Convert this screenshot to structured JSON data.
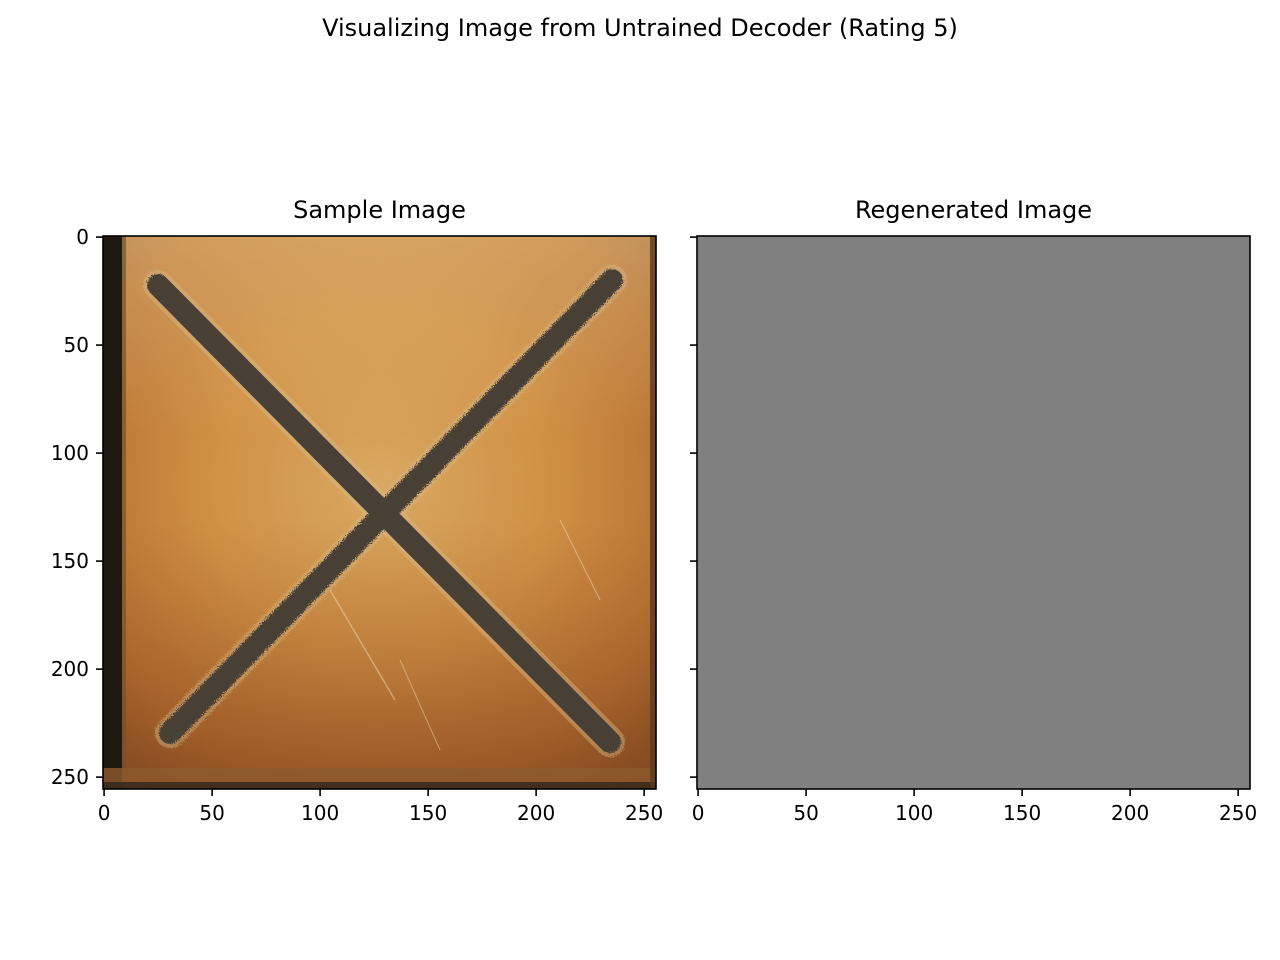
{
  "suptitle": "Visualizing Image from Untrained Decoder (Rating 5)",
  "chart_data": [
    {
      "type": "image",
      "title": "Sample Image",
      "content": "photo of a rusted orange metal plate with a dark X mark",
      "xticks": [
        0,
        50,
        100,
        150,
        200,
        250
      ],
      "yticks": [
        0,
        50,
        100,
        150,
        200,
        250
      ],
      "xlim": [
        -0.5,
        255.5
      ],
      "ylim": [
        255.5,
        -0.5
      ],
      "show_ytick_labels": true
    },
    {
      "type": "image",
      "title": "Regenerated Image",
      "content": "uniform gray image",
      "fill_color": "#808080",
      "xticks": [
        0,
        50,
        100,
        150,
        200,
        250
      ],
      "yticks": [
        0,
        50,
        100,
        150,
        200,
        250
      ],
      "xlim": [
        -0.5,
        255.5
      ],
      "ylim": [
        255.5,
        -0.5
      ],
      "show_ytick_labels": false
    }
  ],
  "colors": {
    "rust_base": "#c98a3c",
    "rust_light": "#dbb06a",
    "rust_dark": "#9a5a2a",
    "mark_dark": "#4a4036",
    "edge_dark": "#1e1a12",
    "regen_gray": "#808080"
  }
}
